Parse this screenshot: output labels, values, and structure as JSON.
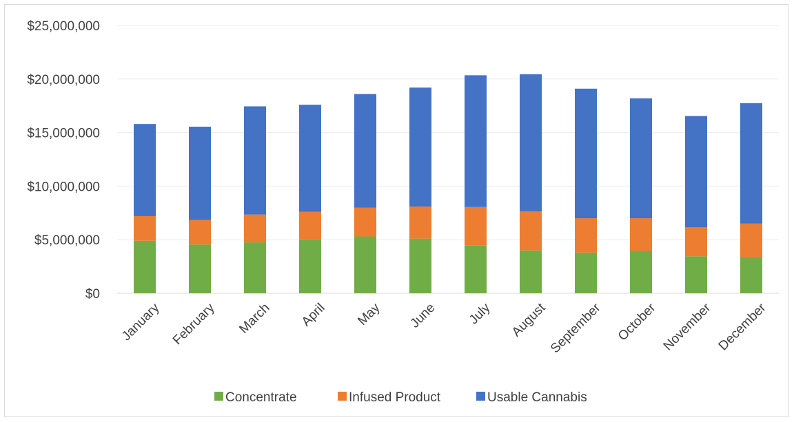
{
  "chart_data": {
    "type": "bar",
    "stacked": true,
    "categories": [
      "January",
      "February",
      "March",
      "April",
      "May",
      "June",
      "July",
      "August",
      "September",
      "October",
      "November",
      "December"
    ],
    "series": [
      {
        "name": "Concentrate",
        "color": "#70ad47",
        "values": [
          4900000,
          4550000,
          4750000,
          5000000,
          5300000,
          5100000,
          4450000,
          4000000,
          3800000,
          3950000,
          3450000,
          3400000
        ]
      },
      {
        "name": "Infused Product",
        "color": "#ed7d31",
        "values": [
          2300000,
          2300000,
          2600000,
          2600000,
          2700000,
          3000000,
          3600000,
          3650000,
          3200000,
          3050000,
          2700000,
          3100000
        ]
      },
      {
        "name": "Usable Cannabis",
        "color": "#4472c4",
        "values": [
          8600000,
          8700000,
          10100000,
          10000000,
          10600000,
          11100000,
          12300000,
          12800000,
          12100000,
          11200000,
          10400000,
          11250000
        ]
      }
    ],
    "y_ticks": [
      "$0",
      "$5,000,000",
      "$10,000,000",
      "$15,000,000",
      "$20,000,000",
      "$25,000,000"
    ],
    "ylim": [
      0,
      25000000
    ],
    "grid": true,
    "legend_position": "bottom"
  }
}
